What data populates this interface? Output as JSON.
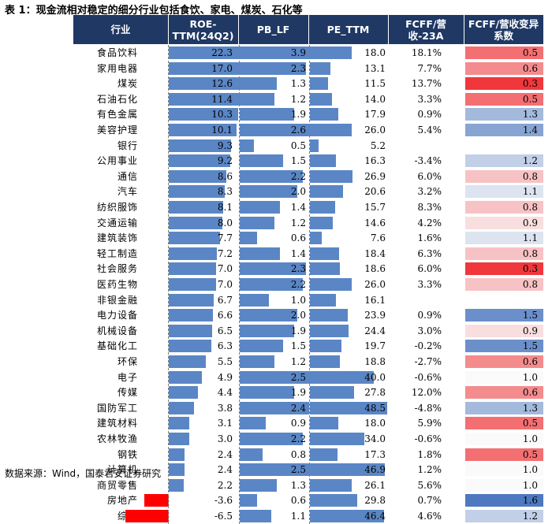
{
  "title": "表 1：现金流相对稳定的细分行业包括食饮、家电、煤炭、石化等",
  "source": "数据来源：Wind，国泰君安证券研究",
  "columns": {
    "industry": "行业",
    "roe": "ROE-\nTTM(24Q2)",
    "pb": "PB_LF",
    "pe": "PE_TTM",
    "fcff": "FCFF/营收-23A",
    "coef": "FCFF/营收变异\n系数"
  },
  "colors": {
    "header_bg": "#1f3864",
    "bar_positive": "#5b86c5",
    "bar_negative": "#ff0000",
    "heat_low": "#4e79c0",
    "heat_mid": "#fafafa",
    "heat_high": "#f0373c"
  },
  "rows": [
    {
      "industry": "食品饮料",
      "roe": "22.3",
      "pb": "3.9",
      "pe": "18.0",
      "fcff": "18.1%",
      "coef": "0.5"
    },
    {
      "industry": "家用电器",
      "roe": "17.0",
      "pb": "2.3",
      "pe": "13.1",
      "fcff": "7.7%",
      "coef": "0.6"
    },
    {
      "industry": "煤炭",
      "roe": "12.6",
      "pb": "1.3",
      "pe": "11.5",
      "fcff": "13.7%",
      "coef": "0.3"
    },
    {
      "industry": "石油石化",
      "roe": "11.4",
      "pb": "1.2",
      "pe": "14.0",
      "fcff": "3.3%",
      "coef": "0.5"
    },
    {
      "industry": "有色金属",
      "roe": "10.3",
      "pb": "1.9",
      "pe": "17.9",
      "fcff": "0.9%",
      "coef": "1.3"
    },
    {
      "industry": "美容护理",
      "roe": "10.1",
      "pb": "2.6",
      "pe": "26.0",
      "fcff": "5.4%",
      "coef": "1.4"
    },
    {
      "industry": "银行",
      "roe": "9.3",
      "pb": "0.5",
      "pe": "5.2",
      "fcff": "",
      "coef": ""
    },
    {
      "industry": "公用事业",
      "roe": "9.2",
      "pb": "1.5",
      "pe": "16.3",
      "fcff": "-3.4%",
      "coef": "1.2"
    },
    {
      "industry": "通信",
      "roe": "8.6",
      "pb": "2.2",
      "pe": "26.9",
      "fcff": "6.0%",
      "coef": "0.8"
    },
    {
      "industry": "汽车",
      "roe": "8.3",
      "pb": "2.0",
      "pe": "20.6",
      "fcff": "3.2%",
      "coef": "1.1"
    },
    {
      "industry": "纺织服饰",
      "roe": "8.1",
      "pb": "1.4",
      "pe": "15.7",
      "fcff": "8.3%",
      "coef": "0.8"
    },
    {
      "industry": "交通运输",
      "roe": "8.0",
      "pb": "1.2",
      "pe": "14.6",
      "fcff": "4.2%",
      "coef": "0.9"
    },
    {
      "industry": "建筑装饰",
      "roe": "7.7",
      "pb": "0.6",
      "pe": "7.6",
      "fcff": "1.6%",
      "coef": "1.1"
    },
    {
      "industry": "轻工制造",
      "roe": "7.2",
      "pb": "1.4",
      "pe": "18.4",
      "fcff": "6.3%",
      "coef": "0.8"
    },
    {
      "industry": "社会服务",
      "roe": "7.0",
      "pb": "2.3",
      "pe": "18.6",
      "fcff": "6.0%",
      "coef": "0.3"
    },
    {
      "industry": "医药生物",
      "roe": "7.0",
      "pb": "2.2",
      "pe": "26.0",
      "fcff": "3.3%",
      "coef": "0.8"
    },
    {
      "industry": "非银金融",
      "roe": "6.7",
      "pb": "1.0",
      "pe": "16.1",
      "fcff": "",
      "coef": ""
    },
    {
      "industry": "电力设备",
      "roe": "6.6",
      "pb": "2.0",
      "pe": "23.9",
      "fcff": "0.9%",
      "coef": "1.5"
    },
    {
      "industry": "机械设备",
      "roe": "6.5",
      "pb": "1.9",
      "pe": "24.4",
      "fcff": "3.0%",
      "coef": "0.9"
    },
    {
      "industry": "基础化工",
      "roe": "6.3",
      "pb": "1.5",
      "pe": "19.7",
      "fcff": "-0.2%",
      "coef": "1.5"
    },
    {
      "industry": "环保",
      "roe": "5.5",
      "pb": "1.2",
      "pe": "18.8",
      "fcff": "-2.7%",
      "coef": "0.6"
    },
    {
      "industry": "电子",
      "roe": "4.9",
      "pb": "2.5",
      "pe": "40.0",
      "fcff": "-0.6%",
      "coef": "1.0"
    },
    {
      "industry": "传媒",
      "roe": "4.4",
      "pb": "1.9",
      "pe": "27.8",
      "fcff": "12.0%",
      "coef": "0.6"
    },
    {
      "industry": "国防军工",
      "roe": "3.8",
      "pb": "2.4",
      "pe": "48.5",
      "fcff": "-4.8%",
      "coef": "1.3"
    },
    {
      "industry": "建筑材料",
      "roe": "3.1",
      "pb": "0.9",
      "pe": "18.0",
      "fcff": "5.9%",
      "coef": "0.5"
    },
    {
      "industry": "农林牧渔",
      "roe": "3.0",
      "pb": "2.2",
      "pe": "34.0",
      "fcff": "-0.6%",
      "coef": "1.0"
    },
    {
      "industry": "钢铁",
      "roe": "2.4",
      "pb": "0.8",
      "pe": "17.3",
      "fcff": "1.8%",
      "coef": "0.5"
    },
    {
      "industry": "计算机",
      "roe": "2.4",
      "pb": "2.5",
      "pe": "46.9",
      "fcff": "1.2%",
      "coef": "1.0"
    },
    {
      "industry": "商贸零售",
      "roe": "2.2",
      "pb": "1.3",
      "pe": "26.1",
      "fcff": "5.6%",
      "coef": "1.0"
    },
    {
      "industry": "房地产",
      "roe": "-3.6",
      "pb": "0.6",
      "pe": "29.8",
      "fcff": "0.7%",
      "coef": "1.6"
    },
    {
      "industry": "综合",
      "roe": "-6.5",
      "pb": "1.1",
      "pe": "46.4",
      "fcff": "4.6%",
      "coef": "1.2"
    }
  ]
}
